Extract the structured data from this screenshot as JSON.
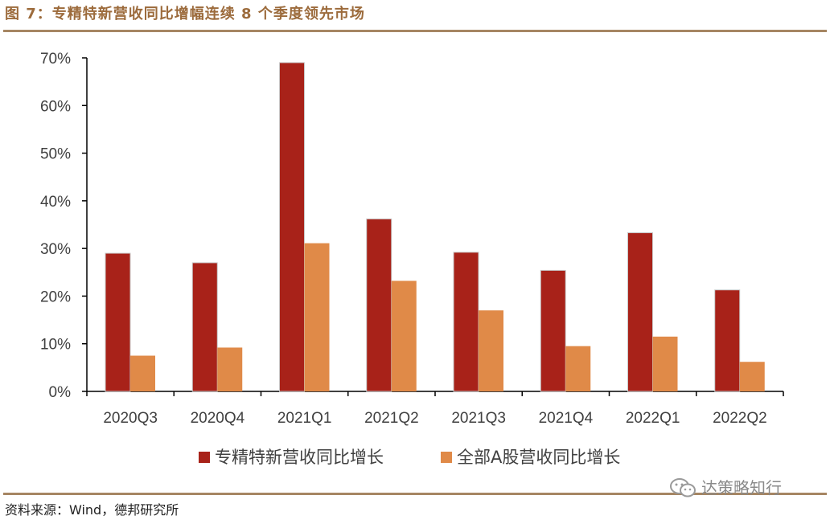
{
  "title": "图 7：专精特新营收同比增幅连续 8 个季度领先市场",
  "source": "资料来源：Wind，德邦研究所",
  "watermark": "达策略知行",
  "colors": {
    "series1": "#a82219",
    "series2": "#e08a48",
    "rule": "#a68663",
    "title": "#9c6b3c"
  },
  "chart_data": {
    "type": "bar",
    "categories": [
      "2020Q3",
      "2020Q4",
      "2021Q1",
      "2021Q2",
      "2021Q3",
      "2021Q4",
      "2022Q1",
      "2022Q2"
    ],
    "series": [
      {
        "name": "专精特新营收同比增长",
        "values": [
          29.0,
          27.0,
          69.0,
          36.2,
          29.2,
          25.4,
          33.3,
          21.3
        ]
      },
      {
        "name": "全部A股营收同比增长",
        "values": [
          7.5,
          9.2,
          31.1,
          23.2,
          17.0,
          9.5,
          11.5,
          6.2
        ]
      }
    ],
    "y_ticks": [
      "0%",
      "10%",
      "20%",
      "30%",
      "40%",
      "50%",
      "60%",
      "70%"
    ],
    "ylim": [
      0,
      70
    ],
    "grid": false,
    "legend_position": "bottom"
  }
}
